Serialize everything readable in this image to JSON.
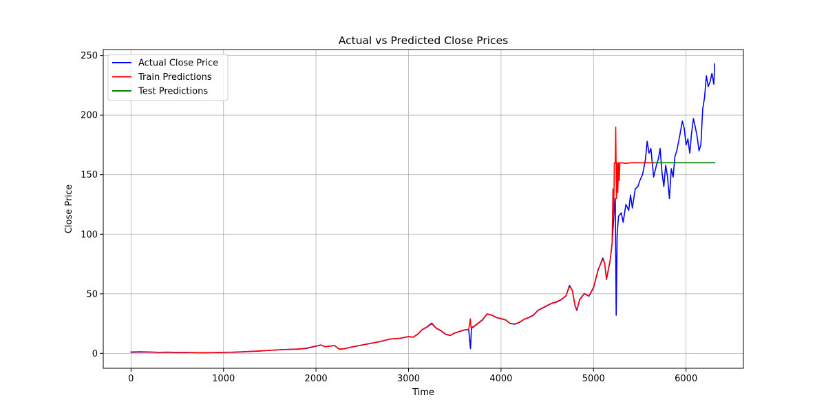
{
  "chart_data": {
    "type": "line",
    "title": "Actual vs Predicted Close Prices",
    "xlabel": "Time",
    "ylabel": "Close Price",
    "xlim": [
      -300,
      6620
    ],
    "ylim": [
      -12.5,
      255
    ],
    "xticks": [
      0,
      1000,
      2000,
      3000,
      4000,
      5000,
      6000
    ],
    "yticks": [
      0,
      50,
      100,
      150,
      200,
      250
    ],
    "grid": true,
    "legend_position": "top-left",
    "series": [
      {
        "name": "Actual Close Price",
        "color": "#0000ff",
        "points": [
          [
            0,
            0.9
          ],
          [
            100,
            1.1
          ],
          [
            200,
            1.0
          ],
          [
            300,
            0.8
          ],
          [
            400,
            0.9
          ],
          [
            500,
            0.7
          ],
          [
            600,
            0.8
          ],
          [
            700,
            0.6
          ],
          [
            800,
            0.6
          ],
          [
            900,
            0.7
          ],
          [
            1000,
            0.8
          ],
          [
            1100,
            0.9
          ],
          [
            1200,
            1.2
          ],
          [
            1300,
            1.6
          ],
          [
            1400,
            2.0
          ],
          [
            1500,
            2.5
          ],
          [
            1600,
            3.0
          ],
          [
            1700,
            3.3
          ],
          [
            1800,
            3.5
          ],
          [
            1900,
            4.2
          ],
          [
            2000,
            6.0
          ],
          [
            2050,
            7.0
          ],
          [
            2100,
            5.5
          ],
          [
            2200,
            6.5
          ],
          [
            2250,
            3.5
          ],
          [
            2300,
            3.8
          ],
          [
            2400,
            5.5
          ],
          [
            2500,
            7.0
          ],
          [
            2600,
            8.5
          ],
          [
            2700,
            10.0
          ],
          [
            2800,
            12.0
          ],
          [
            2900,
            12.5
          ],
          [
            3000,
            14.0
          ],
          [
            3050,
            13.5
          ],
          [
            3100,
            16.0
          ],
          [
            3150,
            20.0
          ],
          [
            3200,
            22.0
          ],
          [
            3250,
            25.0
          ],
          [
            3300,
            21.0
          ],
          [
            3350,
            19.0
          ],
          [
            3400,
            16.0
          ],
          [
            3450,
            15.0
          ],
          [
            3500,
            17.0
          ],
          [
            3600,
            19.5
          ],
          [
            3650,
            20.0
          ],
          [
            3670,
            4.0
          ],
          [
            3680,
            21.0
          ],
          [
            3700,
            22.0
          ],
          [
            3750,
            25.0
          ],
          [
            3800,
            28.0
          ],
          [
            3850,
            33.0
          ],
          [
            3900,
            32.0
          ],
          [
            3950,
            30.0
          ],
          [
            4000,
            29.0
          ],
          [
            4050,
            28.0
          ],
          [
            4100,
            25.0
          ],
          [
            4150,
            24.5
          ],
          [
            4200,
            26.0
          ],
          [
            4250,
            28.5
          ],
          [
            4300,
            30.0
          ],
          [
            4350,
            32.0
          ],
          [
            4400,
            36.0
          ],
          [
            4450,
            38.0
          ],
          [
            4500,
            40.0
          ],
          [
            4550,
            42.0
          ],
          [
            4600,
            43.0
          ],
          [
            4650,
            45.0
          ],
          [
            4700,
            48.0
          ],
          [
            4740,
            57.0
          ],
          [
            4770,
            53.0
          ],
          [
            4800,
            40.0
          ],
          [
            4820,
            36.0
          ],
          [
            4850,
            45.0
          ],
          [
            4900,
            50.0
          ],
          [
            4950,
            48.0
          ],
          [
            5000,
            55.0
          ],
          [
            5050,
            70.0
          ],
          [
            5100,
            80.0
          ],
          [
            5120,
            76.0
          ],
          [
            5140,
            62.0
          ],
          [
            5160,
            70.0
          ],
          [
            5180,
            78.0
          ],
          [
            5200,
            92.0
          ],
          [
            5220,
            115.0
          ],
          [
            5235,
            130.0
          ],
          [
            5245,
            32.0
          ],
          [
            5255,
            100.0
          ],
          [
            5270,
            115.0
          ],
          [
            5300,
            118.0
          ],
          [
            5320,
            110.0
          ],
          [
            5350,
            125.0
          ],
          [
            5380,
            120.0
          ],
          [
            5400,
            133.0
          ],
          [
            5420,
            122.0
          ],
          [
            5450,
            138.0
          ],
          [
            5480,
            140.0
          ],
          [
            5500,
            145.0
          ],
          [
            5530,
            150.0
          ],
          [
            5560,
            162.0
          ],
          [
            5580,
            178.0
          ],
          [
            5600,
            168.0
          ],
          [
            5620,
            172.0
          ],
          [
            5650,
            148.0
          ],
          [
            5680,
            158.0
          ],
          [
            5700,
            163.0
          ],
          [
            5720,
            172.0
          ],
          [
            5740,
            152.0
          ],
          [
            5760,
            140.0
          ],
          [
            5780,
            158.0
          ],
          [
            5800,
            148.0
          ],
          [
            5820,
            130.0
          ],
          [
            5840,
            155.0
          ],
          [
            5860,
            148.0
          ],
          [
            5880,
            165.0
          ],
          [
            5900,
            170.0
          ],
          [
            5930,
            182.0
          ],
          [
            5960,
            195.0
          ],
          [
            5980,
            189.0
          ],
          [
            6000,
            175.0
          ],
          [
            6020,
            180.0
          ],
          [
            6040,
            168.0
          ],
          [
            6060,
            185.0
          ],
          [
            6080,
            197.0
          ],
          [
            6100,
            190.0
          ],
          [
            6120,
            182.0
          ],
          [
            6140,
            170.0
          ],
          [
            6160,
            175.0
          ],
          [
            6180,
            205.0
          ],
          [
            6200,
            215.0
          ],
          [
            6220,
            233.0
          ],
          [
            6240,
            224.0
          ],
          [
            6260,
            228.0
          ],
          [
            6280,
            235.0
          ],
          [
            6300,
            226.0
          ],
          [
            6310,
            243.0
          ]
        ]
      },
      {
        "name": "Train Predictions",
        "color": "#ff0000",
        "points": [
          [
            0,
            1.2
          ],
          [
            100,
            1.4
          ],
          [
            200,
            1.2
          ],
          [
            300,
            0.9
          ],
          [
            400,
            1.0
          ],
          [
            500,
            0.8
          ],
          [
            600,
            0.8
          ],
          [
            700,
            0.6
          ],
          [
            800,
            0.6
          ],
          [
            900,
            0.7
          ],
          [
            1000,
            0.9
          ],
          [
            1100,
            1.0
          ],
          [
            1200,
            1.3
          ],
          [
            1300,
            1.7
          ],
          [
            1400,
            2.1
          ],
          [
            1500,
            2.6
          ],
          [
            1600,
            3.0
          ],
          [
            1700,
            3.4
          ],
          [
            1800,
            3.6
          ],
          [
            1900,
            4.4
          ],
          [
            2000,
            6.2
          ],
          [
            2050,
            7.1
          ],
          [
            2100,
            5.6
          ],
          [
            2200,
            6.6
          ],
          [
            2250,
            3.6
          ],
          [
            2300,
            3.9
          ],
          [
            2400,
            5.6
          ],
          [
            2500,
            7.1
          ],
          [
            2600,
            8.6
          ],
          [
            2700,
            10.1
          ],
          [
            2800,
            12.1
          ],
          [
            2900,
            12.6
          ],
          [
            3000,
            14.2
          ],
          [
            3050,
            13.6
          ],
          [
            3100,
            16.2
          ],
          [
            3150,
            20.2
          ],
          [
            3200,
            22.3
          ],
          [
            3250,
            25.5
          ],
          [
            3300,
            21.2
          ],
          [
            3350,
            19.2
          ],
          [
            3400,
            16.2
          ],
          [
            3450,
            15.2
          ],
          [
            3500,
            17.2
          ],
          [
            3600,
            19.7
          ],
          [
            3650,
            20.2
          ],
          [
            3668,
            29.0
          ],
          [
            3675,
            22.0
          ],
          [
            3700,
            22.3
          ],
          [
            3750,
            25.3
          ],
          [
            3800,
            28.3
          ],
          [
            3850,
            33.2
          ],
          [
            3900,
            32.2
          ],
          [
            3950,
            30.2
          ],
          [
            4000,
            29.2
          ],
          [
            4050,
            28.2
          ],
          [
            4100,
            25.2
          ],
          [
            4150,
            24.7
          ],
          [
            4200,
            26.2
          ],
          [
            4250,
            28.7
          ],
          [
            4300,
            30.2
          ],
          [
            4350,
            32.3
          ],
          [
            4400,
            36.2
          ],
          [
            4450,
            38.3
          ],
          [
            4500,
            40.3
          ],
          [
            4550,
            42.2
          ],
          [
            4600,
            43.3
          ],
          [
            4650,
            45.2
          ],
          [
            4700,
            48.3
          ],
          [
            4740,
            56.0
          ],
          [
            4770,
            53.3
          ],
          [
            4800,
            40.5
          ],
          [
            4820,
            36.5
          ],
          [
            4850,
            45.3
          ],
          [
            4900,
            50.3
          ],
          [
            4950,
            48.3
          ],
          [
            5000,
            55.5
          ],
          [
            5050,
            70.5
          ],
          [
            5100,
            79.0
          ],
          [
            5120,
            76.0
          ],
          [
            5140,
            62.5
          ],
          [
            5160,
            70.5
          ],
          [
            5180,
            78.5
          ],
          [
            5200,
            92.0
          ],
          [
            5210,
            138.0
          ],
          [
            5218,
            115.0
          ],
          [
            5225,
            160.0
          ],
          [
            5235,
            160.0
          ],
          [
            5240,
            190.0
          ],
          [
            5248,
            130.0
          ],
          [
            5256,
            160.0
          ],
          [
            5262,
            135.0
          ],
          [
            5270,
            160.0
          ],
          [
            5278,
            145.0
          ],
          [
            5285,
            160.0
          ],
          [
            5300,
            160.0
          ],
          [
            5350,
            159.5
          ],
          [
            5400,
            160.0
          ],
          [
            5500,
            160.0
          ],
          [
            5600,
            160.0
          ],
          [
            5650,
            160.0
          ]
        ]
      },
      {
        "name": "Test Predictions",
        "color": "#008000",
        "points": [
          [
            5650,
            160.0
          ],
          [
            5800,
            160.0
          ],
          [
            6000,
            160.0
          ],
          [
            6200,
            160.0
          ],
          [
            6310,
            160.0
          ]
        ]
      }
    ]
  }
}
